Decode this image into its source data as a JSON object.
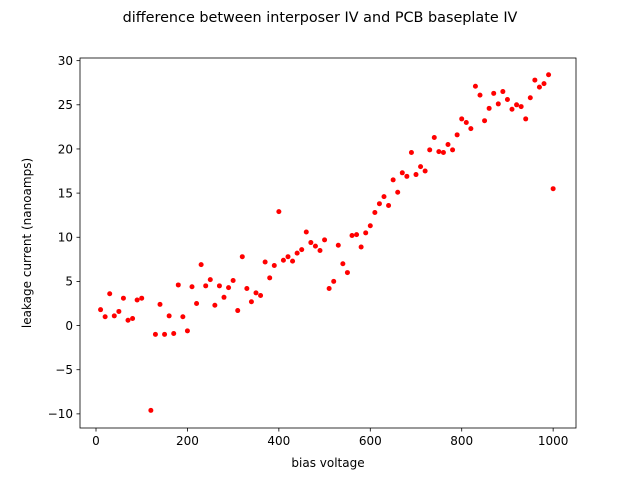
{
  "chart_data": {
    "type": "scatter",
    "title": "difference between interposer IV and PCB baseplate IV",
    "xlabel": "bias voltage",
    "ylabel": "leakage current (nanoamps)",
    "xlim": [
      -35,
      1050
    ],
    "ylim": [
      -11.6,
      30.3
    ],
    "xticks": [
      0,
      200,
      400,
      600,
      800,
      1000
    ],
    "yticks": [
      -10,
      -5,
      0,
      5,
      10,
      15,
      20,
      25,
      30
    ],
    "ytick_labels": [
      "−10",
      "−5",
      "0",
      "5",
      "10",
      "15",
      "20",
      "25",
      "30"
    ],
    "grid": false,
    "legend": "none",
    "marker_color": "#ff0000",
    "series": [
      {
        "points": [
          [
            10,
            1.8
          ],
          [
            20,
            1.0
          ],
          [
            30,
            3.6
          ],
          [
            40,
            1.1
          ],
          [
            50,
            1.6
          ],
          [
            60,
            3.1
          ],
          [
            70,
            0.6
          ],
          [
            80,
            0.8
          ],
          [
            90,
            2.9
          ],
          [
            100,
            3.1
          ],
          [
            120,
            -9.6
          ],
          [
            130,
            -1.0
          ],
          [
            140,
            2.4
          ],
          [
            150,
            -1.0
          ],
          [
            160,
            1.1
          ],
          [
            170,
            -0.9
          ],
          [
            180,
            4.6
          ],
          [
            190,
            1.0
          ],
          [
            200,
            -0.6
          ],
          [
            210,
            4.4
          ],
          [
            220,
            2.5
          ],
          [
            230,
            6.9
          ],
          [
            240,
            4.5
          ],
          [
            250,
            5.2
          ],
          [
            260,
            2.3
          ],
          [
            270,
            4.5
          ],
          [
            280,
            3.2
          ],
          [
            290,
            4.3
          ],
          [
            300,
            5.1
          ],
          [
            310,
            1.7
          ],
          [
            320,
            7.8
          ],
          [
            330,
            4.2
          ],
          [
            340,
            2.7
          ],
          [
            350,
            3.7
          ],
          [
            360,
            3.4
          ],
          [
            370,
            7.2
          ],
          [
            380,
            5.4
          ],
          [
            390,
            6.8
          ],
          [
            400,
            12.9
          ],
          [
            410,
            7.4
          ],
          [
            420,
            7.8
          ],
          [
            430,
            7.3
          ],
          [
            440,
            8.2
          ],
          [
            450,
            8.6
          ],
          [
            460,
            10.6
          ],
          [
            470,
            9.4
          ],
          [
            480,
            9.0
          ],
          [
            490,
            8.5
          ],
          [
            500,
            9.7
          ],
          [
            510,
            4.2
          ],
          [
            520,
            5.0
          ],
          [
            530,
            9.1
          ],
          [
            540,
            7.0
          ],
          [
            550,
            6.0
          ],
          [
            560,
            10.2
          ],
          [
            570,
            10.3
          ],
          [
            580,
            8.9
          ],
          [
            590,
            10.5
          ],
          [
            600,
            11.3
          ],
          [
            610,
            12.8
          ],
          [
            620,
            13.8
          ],
          [
            630,
            14.6
          ],
          [
            640,
            13.6
          ],
          [
            650,
            16.5
          ],
          [
            660,
            15.1
          ],
          [
            670,
            17.3
          ],
          [
            680,
            16.9
          ],
          [
            690,
            19.6
          ],
          [
            700,
            17.1
          ],
          [
            710,
            18.0
          ],
          [
            720,
            17.5
          ],
          [
            730,
            19.9
          ],
          [
            740,
            21.3
          ],
          [
            750,
            19.7
          ],
          [
            760,
            19.6
          ],
          [
            770,
            20.5
          ],
          [
            780,
            19.9
          ],
          [
            790,
            21.6
          ],
          [
            800,
            23.4
          ],
          [
            810,
            23.0
          ],
          [
            820,
            22.3
          ],
          [
            830,
            27.1
          ],
          [
            840,
            26.1
          ],
          [
            850,
            23.2
          ],
          [
            860,
            24.6
          ],
          [
            870,
            26.3
          ],
          [
            880,
            25.1
          ],
          [
            890,
            26.5
          ],
          [
            900,
            25.6
          ],
          [
            910,
            24.5
          ],
          [
            920,
            25.0
          ],
          [
            930,
            24.8
          ],
          [
            940,
            23.4
          ],
          [
            950,
            25.8
          ],
          [
            960,
            27.8
          ],
          [
            970,
            27.0
          ],
          [
            980,
            27.4
          ],
          [
            990,
            28.4
          ],
          [
            1000,
            15.5
          ]
        ]
      }
    ]
  }
}
